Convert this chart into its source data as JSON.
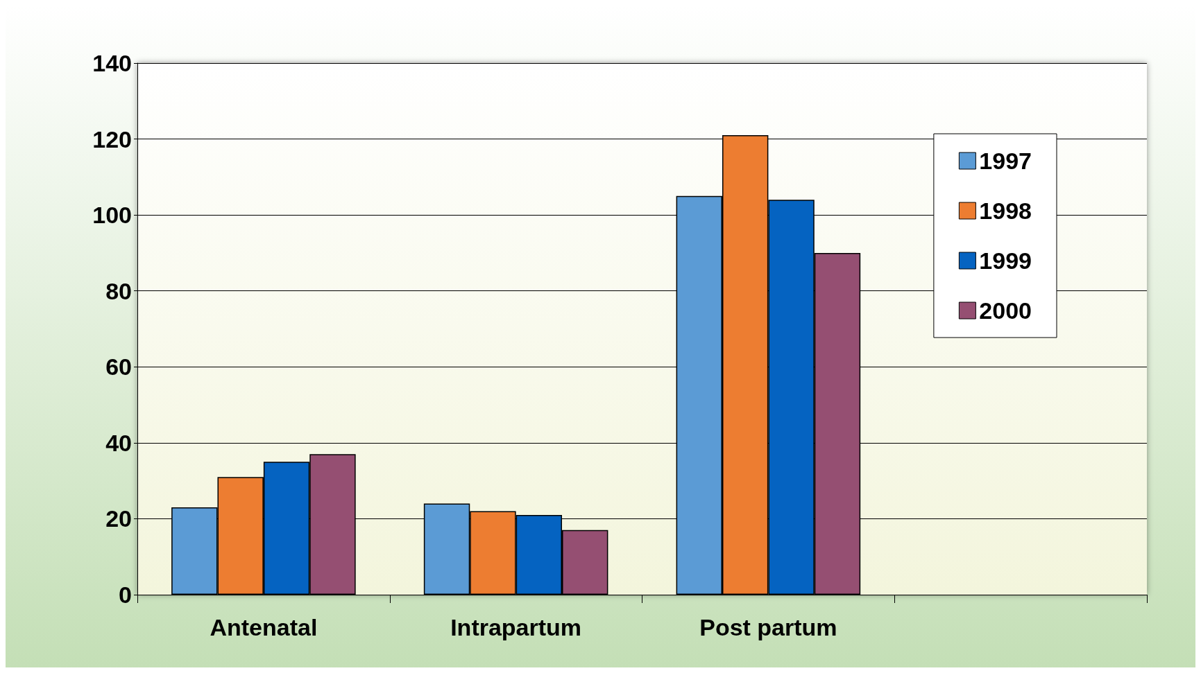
{
  "chart_data": {
    "type": "bar",
    "categories": [
      "Antenatal",
      "Intrapartum",
      "Post partum",
      null
    ],
    "series": [
      {
        "name": "1997",
        "color": "#5b9bd5",
        "values": [
          23,
          24,
          105,
          null
        ]
      },
      {
        "name": "1998",
        "color": "#ed7d31",
        "values": [
          31,
          22,
          121,
          null
        ]
      },
      {
        "name": "1999",
        "color": "#0563c1",
        "values": [
          35,
          21,
          104,
          null
        ]
      },
      {
        "name": "2000",
        "color": "#954f72",
        "values": [
          37,
          17,
          90,
          null
        ]
      }
    ],
    "ylim": [
      0,
      140
    ],
    "yticks": [
      0,
      20,
      40,
      60,
      80,
      100,
      120,
      140
    ],
    "grid": "y",
    "legend": "top right"
  }
}
